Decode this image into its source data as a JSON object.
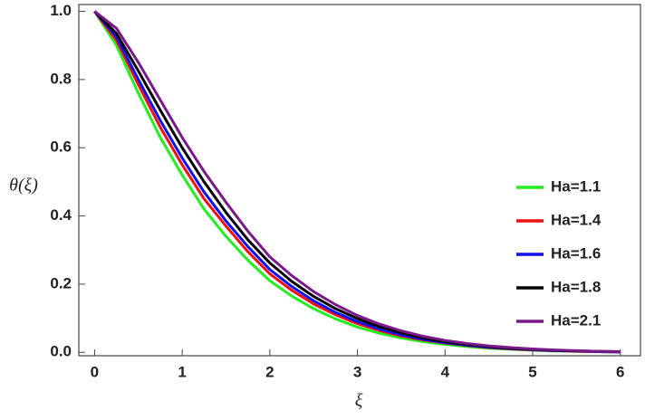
{
  "chart_data": {
    "type": "line",
    "x_label": "ξ",
    "y_label": "θ(ξ)",
    "x": [
      0,
      0.25,
      0.5,
      0.75,
      1,
      1.25,
      1.5,
      1.75,
      2,
      2.25,
      2.5,
      2.75,
      3,
      3.25,
      3.5,
      3.75,
      4,
      4.25,
      4.5,
      4.75,
      5,
      5.25,
      5.5,
      5.75,
      6
    ],
    "series": [
      {
        "name": "Ha=1.1",
        "color": "#22ee22",
        "values": [
          1,
          0.9,
          0.76,
          0.63,
          0.52,
          0.42,
          0.34,
          0.27,
          0.21,
          0.165,
          0.128,
          0.098,
          0.074,
          0.056,
          0.042,
          0.031,
          0.023,
          0.017,
          0.012,
          0.009,
          0.006,
          0.004,
          0.003,
          0.002,
          0.001
        ]
      },
      {
        "name": "Ha=1.4",
        "color": "#ee1111",
        "values": [
          1,
          0.915,
          0.785,
          0.66,
          0.55,
          0.45,
          0.37,
          0.295,
          0.23,
          0.182,
          0.142,
          0.11,
          0.084,
          0.064,
          0.048,
          0.036,
          0.027,
          0.02,
          0.014,
          0.01,
          0.007,
          0.005,
          0.003,
          0.002,
          0.001
        ]
      },
      {
        "name": "Ha=1.6",
        "color": "#1111ee",
        "values": [
          1,
          0.925,
          0.8,
          0.68,
          0.57,
          0.47,
          0.385,
          0.31,
          0.243,
          0.193,
          0.151,
          0.117,
          0.09,
          0.068,
          0.051,
          0.038,
          0.028,
          0.021,
          0.015,
          0.011,
          0.008,
          0.005,
          0.004,
          0.002,
          0.001
        ]
      },
      {
        "name": "Ha=1.8",
        "color": "#000000",
        "values": [
          1,
          0.935,
          0.825,
          0.71,
          0.6,
          0.5,
          0.41,
          0.33,
          0.262,
          0.208,
          0.164,
          0.128,
          0.099,
          0.075,
          0.057,
          0.042,
          0.031,
          0.023,
          0.017,
          0.012,
          0.009,
          0.006,
          0.004,
          0.003,
          0.002
        ]
      },
      {
        "name": "Ha=2.1",
        "color": "#7a1a8a",
        "values": [
          1,
          0.95,
          0.85,
          0.74,
          0.63,
          0.53,
          0.44,
          0.355,
          0.28,
          0.225,
          0.178,
          0.14,
          0.108,
          0.083,
          0.063,
          0.047,
          0.035,
          0.026,
          0.019,
          0.014,
          0.01,
          0.007,
          0.005,
          0.003,
          0.002
        ]
      }
    ],
    "xlim": [
      -0.18,
      6.23
    ],
    "ylim": [
      -0.01,
      1.02
    ],
    "xticks": [
      0,
      1,
      2,
      3,
      4,
      5,
      6
    ],
    "yticks": [
      {
        "value": 0,
        "label": "0.0"
      },
      0.2,
      0.4,
      0.6,
      0.8,
      {
        "value": 1,
        "label": "1.0"
      }
    ],
    "legend": "right"
  }
}
